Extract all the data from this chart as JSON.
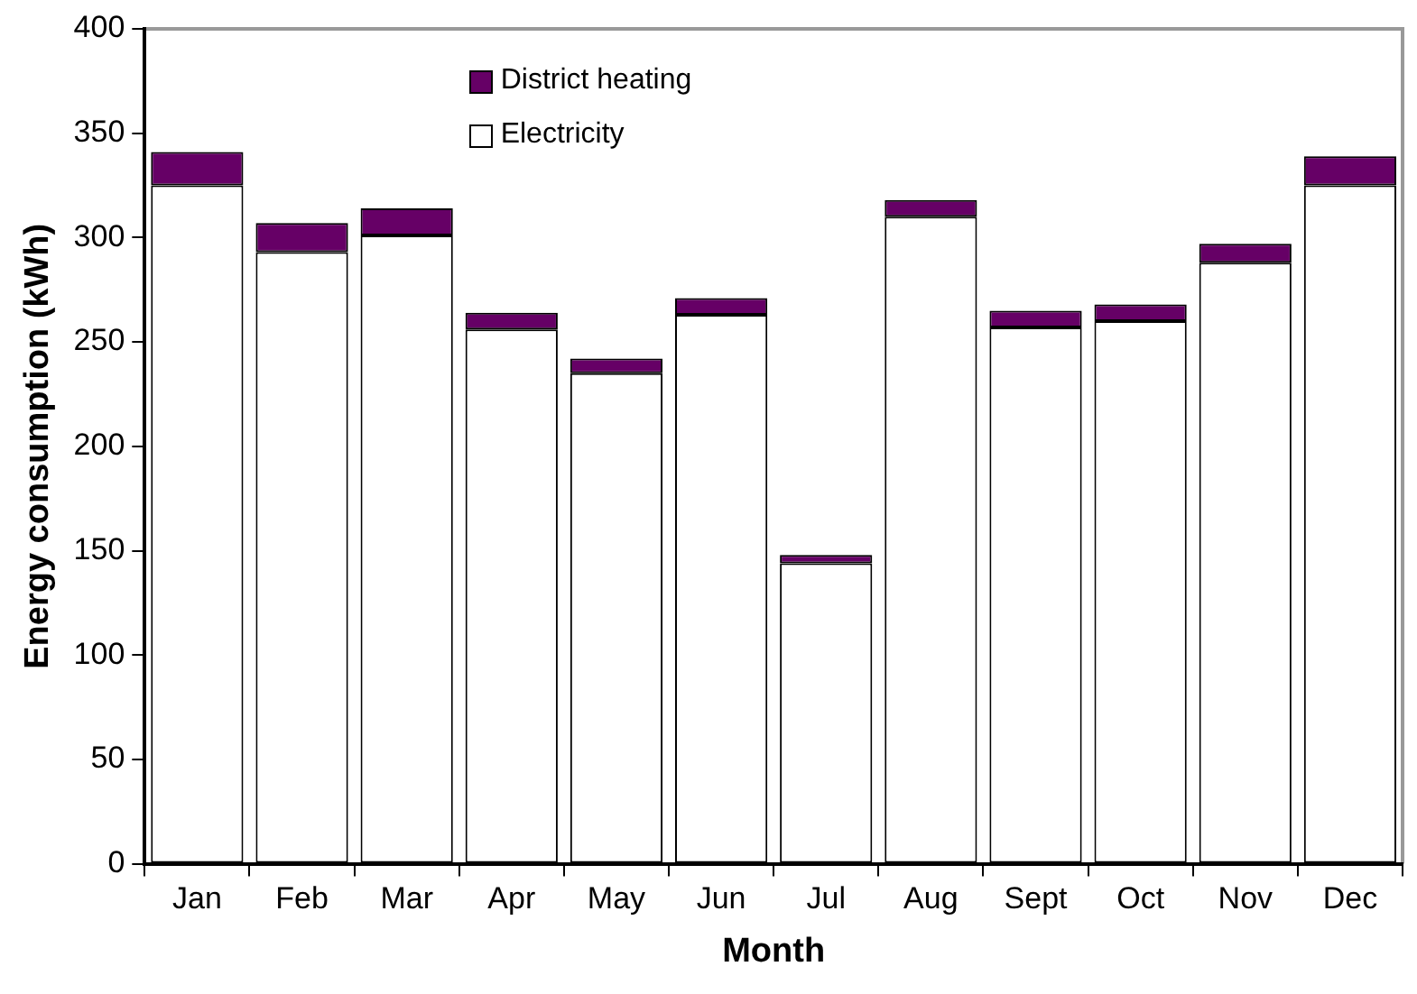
{
  "chart_data": {
    "type": "bar",
    "stacked": true,
    "xlabel": "Month",
    "ylabel": "Energy consumption (kWh)",
    "categories": [
      "Jan",
      "Feb",
      "Mar",
      "Apr",
      "May",
      "Jun",
      "Jul",
      "Aug",
      "Sept",
      "Oct",
      "Nov",
      "Dec"
    ],
    "series": [
      {
        "name": "Electricity",
        "color": "#ffffff",
        "values": [
          325,
          293,
          301,
          256,
          235,
          263,
          144,
          310,
          257,
          260,
          288,
          325
        ]
      },
      {
        "name": "District heating",
        "color": "#660066",
        "values": [
          16,
          14,
          13,
          8,
          7,
          8,
          4,
          8,
          8,
          8,
          9,
          14
        ]
      }
    ],
    "ylim": [
      0,
      400
    ],
    "yticks": [
      0,
      50,
      100,
      150,
      200,
      250,
      300,
      350,
      400
    ],
    "grid": false,
    "legend": "top"
  }
}
